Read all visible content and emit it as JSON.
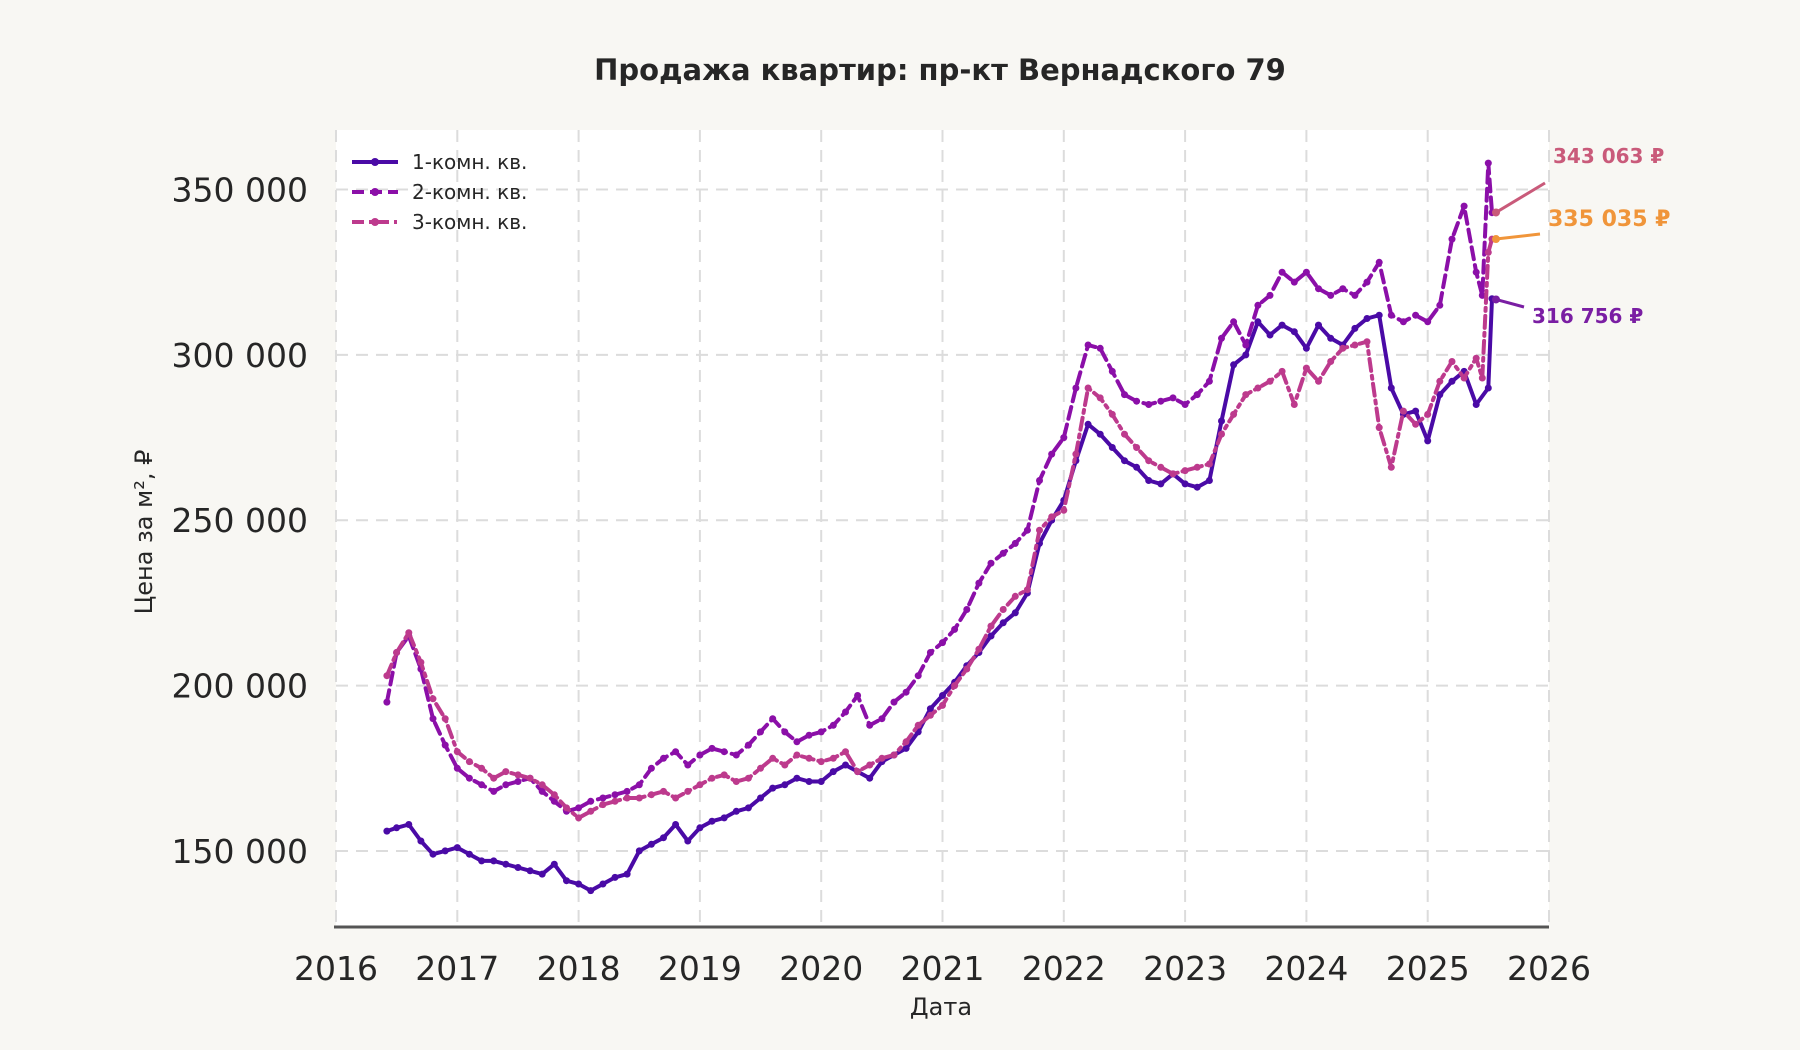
{
  "chart_data": {
    "type": "line",
    "title": "Продажа квартир: пр-кт Вернадского 79",
    "xlabel": "Дата",
    "ylabel": "Цена за м², ₽",
    "xlim": [
      2016.0,
      2026.0
    ],
    "ylim": [
      127000,
      368000
    ],
    "x_ticks": [
      2016,
      2017,
      2018,
      2019,
      2020,
      2021,
      2022,
      2023,
      2024,
      2025,
      2026
    ],
    "x_tick_labels": [
      "2016",
      "2017",
      "2018",
      "2019",
      "2020",
      "2021",
      "2022",
      "2023",
      "2024",
      "2025",
      "2026"
    ],
    "y_ticks": [
      150000,
      200000,
      250000,
      300000,
      350000
    ],
    "y_tick_labels": [
      "150 000",
      "200 000",
      "250 000",
      "300 000",
      "350 000"
    ],
    "grid": true,
    "legend_position": "top-left",
    "series": [
      {
        "name": "1-комн. кв.",
        "color": "#4a0aa6",
        "dash": "solid",
        "x": [
          2016.42,
          2016.5,
          2016.6,
          2016.7,
          2016.8,
          2016.9,
          2017.0,
          2017.1,
          2017.2,
          2017.3,
          2017.4,
          2017.5,
          2017.6,
          2017.7,
          2017.8,
          2017.9,
          2018.0,
          2018.1,
          2018.2,
          2018.3,
          2018.4,
          2018.5,
          2018.6,
          2018.7,
          2018.8,
          2018.9,
          2019.0,
          2019.1,
          2019.2,
          2019.3,
          2019.4,
          2019.5,
          2019.6,
          2019.7,
          2019.8,
          2019.9,
          2020.0,
          2020.1,
          2020.2,
          2020.3,
          2020.4,
          2020.5,
          2020.6,
          2020.7,
          2020.8,
          2020.9,
          2021.0,
          2021.1,
          2021.2,
          2021.3,
          2021.4,
          2021.5,
          2021.6,
          2021.7,
          2021.8,
          2021.9,
          2022.0,
          2022.1,
          2022.2,
          2022.3,
          2022.4,
          2022.5,
          2022.6,
          2022.7,
          2022.8,
          2022.9,
          2023.0,
          2023.1,
          2023.2,
          2023.3,
          2023.4,
          2023.5,
          2023.6,
          2023.7,
          2023.8,
          2023.9,
          2024.0,
          2024.1,
          2024.2,
          2024.3,
          2024.4,
          2024.5,
          2024.6,
          2024.7,
          2024.8,
          2024.9,
          2025.0,
          2025.1,
          2025.2,
          2025.3,
          2025.4,
          2025.5,
          2025.53
        ],
        "values": [
          156000,
          157000,
          158000,
          153000,
          149000,
          150000,
          151000,
          149000,
          147000,
          147000,
          146000,
          145000,
          144000,
          143000,
          146000,
          141000,
          140000,
          138000,
          140000,
          142000,
          143000,
          150000,
          152000,
          154000,
          158000,
          153000,
          157000,
          159000,
          160000,
          162000,
          163000,
          166000,
          169000,
          170000,
          172000,
          171000,
          171000,
          174000,
          176000,
          174000,
          172000,
          177000,
          179000,
          181000,
          186000,
          193000,
          197000,
          201000,
          206000,
          210000,
          215000,
          219000,
          222000,
          228000,
          243000,
          250000,
          256000,
          268000,
          279000,
          276000,
          272000,
          268000,
          266000,
          262000,
          261000,
          264000,
          261000,
          260000,
          262000,
          280000,
          297000,
          300000,
          310000,
          306000,
          309000,
          307000,
          302000,
          309000,
          305000,
          303000,
          308000,
          311000,
          312000,
          290000,
          282000,
          283000,
          274000,
          288000,
          292000,
          295000,
          285000,
          290000,
          317000
        ]
      },
      {
        "name": "2-комн. кв.",
        "color": "#8b0fa8",
        "dash": "dashed",
        "x": [
          2016.42,
          2016.5,
          2016.6,
          2016.7,
          2016.8,
          2016.9,
          2017.0,
          2017.1,
          2017.2,
          2017.3,
          2017.4,
          2017.5,
          2017.6,
          2017.7,
          2017.8,
          2017.9,
          2018.0,
          2018.1,
          2018.2,
          2018.3,
          2018.4,
          2018.5,
          2018.6,
          2018.7,
          2018.8,
          2018.9,
          2019.0,
          2019.1,
          2019.2,
          2019.3,
          2019.4,
          2019.5,
          2019.6,
          2019.7,
          2019.8,
          2019.9,
          2020.0,
          2020.1,
          2020.2,
          2020.3,
          2020.4,
          2020.5,
          2020.6,
          2020.7,
          2020.8,
          2020.9,
          2021.0,
          2021.1,
          2021.2,
          2021.3,
          2021.4,
          2021.5,
          2021.6,
          2021.7,
          2021.8,
          2021.9,
          2022.0,
          2022.1,
          2022.2,
          2022.3,
          2022.4,
          2022.5,
          2022.6,
          2022.7,
          2022.8,
          2022.9,
          2023.0,
          2023.1,
          2023.2,
          2023.3,
          2023.4,
          2023.5,
          2023.6,
          2023.7,
          2023.8,
          2023.9,
          2024.0,
          2024.1,
          2024.2,
          2024.3,
          2024.4,
          2024.5,
          2024.6,
          2024.7,
          2024.8,
          2024.9,
          2025.0,
          2025.1,
          2025.2,
          2025.3,
          2025.4,
          2025.45,
          2025.5,
          2025.53
        ],
        "values": [
          195000,
          210000,
          215000,
          205000,
          190000,
          182000,
          175000,
          172000,
          170000,
          168000,
          170000,
          171000,
          172000,
          168000,
          165000,
          162000,
          163000,
          165000,
          166000,
          167000,
          168000,
          170000,
          175000,
          178000,
          180000,
          176000,
          179000,
          181000,
          180000,
          179000,
          182000,
          186000,
          190000,
          186000,
          183000,
          185000,
          186000,
          188000,
          192000,
          197000,
          188000,
          190000,
          195000,
          198000,
          203000,
          210000,
          213000,
          217000,
          223000,
          231000,
          237000,
          240000,
          243000,
          247000,
          262000,
          270000,
          275000,
          290000,
          303000,
          302000,
          295000,
          288000,
          286000,
          285000,
          286000,
          287000,
          285000,
          288000,
          292000,
          305000,
          310000,
          303000,
          315000,
          318000,
          325000,
          322000,
          325000,
          320000,
          318000,
          320000,
          318000,
          322000,
          328000,
          312000,
          310000,
          312000,
          310000,
          315000,
          335000,
          345000,
          325000,
          318000,
          358000,
          343000
        ]
      },
      {
        "name": "3-комн. кв.",
        "color": "#bd3a8d",
        "dash": "dashdot",
        "x": [
          2016.42,
          2016.5,
          2016.6,
          2016.7,
          2016.8,
          2016.9,
          2017.0,
          2017.1,
          2017.2,
          2017.3,
          2017.4,
          2017.5,
          2017.6,
          2017.7,
          2017.8,
          2017.9,
          2018.0,
          2018.1,
          2018.2,
          2018.3,
          2018.4,
          2018.5,
          2018.6,
          2018.7,
          2018.8,
          2018.9,
          2019.0,
          2019.1,
          2019.2,
          2019.3,
          2019.4,
          2019.5,
          2019.6,
          2019.7,
          2019.8,
          2019.9,
          2020.0,
          2020.1,
          2020.2,
          2020.3,
          2020.4,
          2020.5,
          2020.6,
          2020.7,
          2020.8,
          2020.9,
          2021.0,
          2021.1,
          2021.2,
          2021.3,
          2021.4,
          2021.5,
          2021.6,
          2021.7,
          2021.8,
          2021.9,
          2022.0,
          2022.1,
          2022.2,
          2022.3,
          2022.4,
          2022.5,
          2022.6,
          2022.7,
          2022.8,
          2022.9,
          2023.0,
          2023.1,
          2023.2,
          2023.3,
          2023.4,
          2023.5,
          2023.6,
          2023.7,
          2023.8,
          2023.9,
          2024.0,
          2024.1,
          2024.2,
          2024.3,
          2024.4,
          2024.5,
          2024.6,
          2024.7,
          2024.8,
          2024.9,
          2025.0,
          2025.1,
          2025.2,
          2025.3,
          2025.4,
          2025.45,
          2025.5,
          2025.53
        ],
        "values": [
          203000,
          210000,
          216000,
          207000,
          196000,
          190000,
          180000,
          177000,
          175000,
          172000,
          174000,
          173000,
          172000,
          170000,
          167000,
          163000,
          160000,
          162000,
          164000,
          165000,
          166000,
          166000,
          167000,
          168000,
          166000,
          168000,
          170000,
          172000,
          173000,
          171000,
          172000,
          175000,
          178000,
          176000,
          179000,
          178000,
          177000,
          178000,
          180000,
          174000,
          176000,
          178000,
          179000,
          183000,
          188000,
          191000,
          194000,
          200000,
          205000,
          211000,
          218000,
          223000,
          227000,
          229000,
          247000,
          251000,
          253000,
          270000,
          290000,
          287000,
          282000,
          276000,
          272000,
          268000,
          266000,
          264000,
          265000,
          266000,
          267000,
          276000,
          282000,
          288000,
          290000,
          292000,
          295000,
          285000,
          296000,
          292000,
          298000,
          302000,
          303000,
          304000,
          278000,
          266000,
          283000,
          279000,
          282000,
          292000,
          298000,
          293000,
          299000,
          293000,
          331000,
          335000
        ]
      }
    ],
    "annotations": [
      {
        "text": "343 063 ₽",
        "series": "2-комн. кв.",
        "color": "#c95a7a",
        "x": 2025.53,
        "y": 343063
      },
      {
        "text": "335 035 ₽",
        "series": "3-комн. кв.",
        "color": "#f0953a",
        "x": 2025.53,
        "y": 335035
      },
      {
        "text": "316 756 ₽",
        "series": "1-комн. кв.",
        "color": "#7a1ea3",
        "x": 2025.53,
        "y": 316756
      }
    ]
  }
}
